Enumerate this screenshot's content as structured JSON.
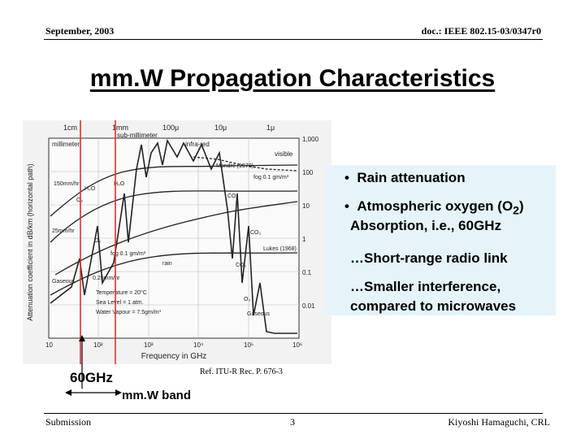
{
  "header": {
    "date": "September, 2003",
    "doc": "doc.: IEEE 802.15-03/0347r0"
  },
  "title": "mm.W Propagation Characteristics",
  "figure": {
    "ylabel": "Attenuation coefficient in dB/km (horizontal path)",
    "xlabel": "Frequency in GHz",
    "top_wavelengths": [
      "1cm",
      "1mm",
      "100μ",
      "10μ",
      "1μ"
    ],
    "top_regions": [
      "sub-millimeter",
      "millimeter",
      "infra-red",
      "visible"
    ],
    "x_ticks": [
      "10",
      "10²",
      "10³",
      "10⁴",
      "10⁵",
      "10⁶"
    ],
    "y_ticks": [
      "1,000",
      "100",
      "10",
      "1",
      "0.1",
      "0.01"
    ],
    "annotations": [
      "150mm/hr",
      "25mm/hr",
      "H₂O",
      "O₂",
      "H₂O",
      "O₂",
      "Gaseous",
      "fog 0.1 gm/m³",
      "rain",
      "0.25mm/hr",
      "Mondre (1970)",
      "fog 0.1 gm/m³",
      "CO₂",
      "CO₂",
      "CO₂",
      "Lukes (1968)",
      "O₃",
      "Gaseous",
      "Temperature = 20°C",
      "Sea Level = 1 atm.",
      "Water Vapour = 7.5gm/m³"
    ]
  },
  "bullets": {
    "b1": "Rain attenuation",
    "b2_pre": "Atmospheric oxygen (O",
    "b2_sub": "2",
    "b2_post": ")",
    "b2_line2": "Absorption, i.e., 60GHz",
    "line3": "…Short-range radio link",
    "line4": "…Smaller interference,",
    "line5": "compared to microwaves"
  },
  "labels": {
    "ghz": "60GHz",
    "band": "mm.W band",
    "ref": "Ref. ITU-R Rec. P. 676-3"
  },
  "footer": {
    "left": "Submission",
    "page": "3",
    "right": "Kiyoshi Hamaguchi, CRL"
  },
  "colors": {
    "callout_bg": "#e4f4f9",
    "band_line": "#e03030"
  }
}
